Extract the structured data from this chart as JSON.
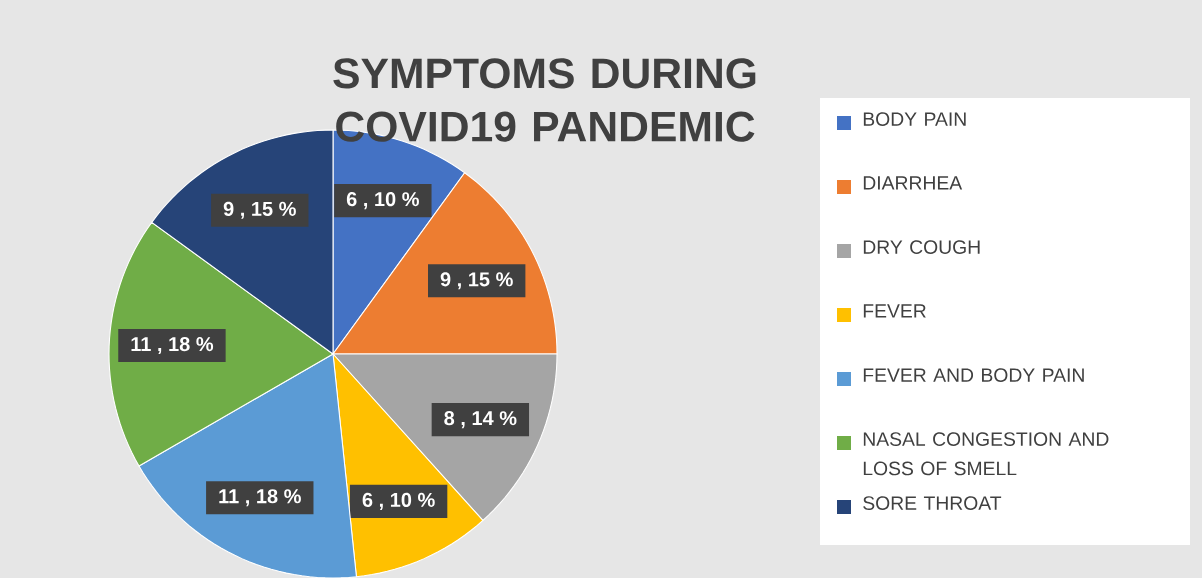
{
  "chart_data": {
    "type": "pie",
    "title": "SYMPTOMS DURING COVID19 PANDEMIC",
    "categories": [
      "BODY PAIN",
      "DIARRHEA",
      "DRY COUGH",
      "FEVER",
      "FEVER AND BODY PAIN",
      "NASAL CONGESTION AND LOSS OF SMELL",
      "SORE THROAT"
    ],
    "values": [
      6,
      9,
      8,
      6,
      11,
      11,
      9
    ],
    "value_labels": [
      "6 , 10 %",
      "9 , 15 %",
      "8 , 14 %",
      "6 , 10 %",
      "11 , 18 %",
      "11 , 18 %",
      "9 , 15 %"
    ],
    "colors": [
      "#4472c4",
      "#ed7d31",
      "#a5a5a5",
      "#ffc000",
      "#5b9bd5",
      "#70ad47",
      "#264478"
    ],
    "legend": "right"
  }
}
